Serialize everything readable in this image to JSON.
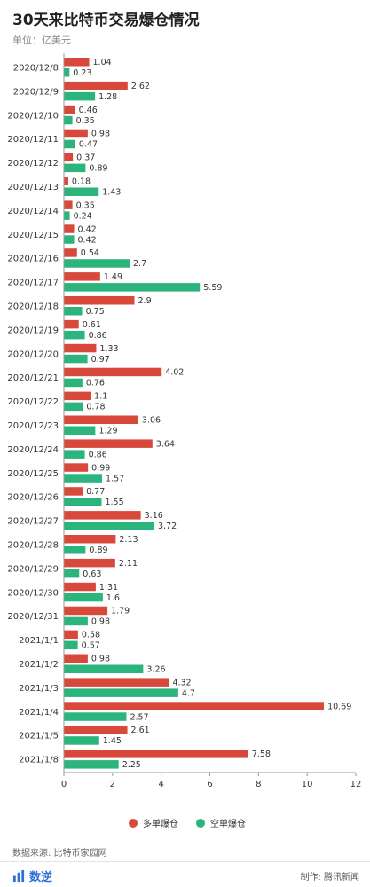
{
  "header": {
    "title": "30天来比特币交易爆仓情况",
    "subtitle": "单位：亿美元"
  },
  "footer": {
    "source": "数据来源: 比特币家园网",
    "brand": "数逆",
    "credit": "制作: 腾讯新闻"
  },
  "chart_data": {
    "type": "bar",
    "orientation": "horizontal",
    "categories": [
      "2020/12/8",
      "2020/12/9",
      "2020/12/10",
      "2020/12/11",
      "2020/12/12",
      "2020/12/13",
      "2020/12/14",
      "2020/12/15",
      "2020/12/16",
      "2020/12/17",
      "2020/12/18",
      "2020/12/19",
      "2020/12/20",
      "2020/12/21",
      "2020/12/22",
      "2020/12/23",
      "2020/12/24",
      "2020/12/25",
      "2020/12/26",
      "2020/12/27",
      "2020/12/28",
      "2020/12/29",
      "2020/12/30",
      "2020/12/31",
      "2021/1/1",
      "2021/1/2",
      "2021/1/3",
      "2021/1/4",
      "2021/1/5",
      "2021/1/8"
    ],
    "series": [
      {
        "name": "多单爆仓",
        "color": "#d9493b",
        "values": [
          1.04,
          2.62,
          0.46,
          0.98,
          0.37,
          0.18,
          0.35,
          0.42,
          0.54,
          1.49,
          2.9,
          0.61,
          1.33,
          4.02,
          1.1,
          3.06,
          3.64,
          0.99,
          0.77,
          3.16,
          2.13,
          2.11,
          1.31,
          1.79,
          0.58,
          0.98,
          4.32,
          10.69,
          2.61,
          7.58
        ]
      },
      {
        "name": "空单爆仓",
        "color": "#2bb57d",
        "values": [
          0.23,
          1.28,
          0.35,
          0.47,
          0.89,
          1.43,
          0.24,
          0.42,
          2.7,
          5.59,
          0.75,
          0.86,
          0.97,
          0.76,
          0.78,
          1.29,
          0.86,
          1.57,
          1.55,
          3.72,
          0.89,
          0.63,
          1.6,
          0.98,
          0.57,
          3.26,
          4.7,
          2.57,
          1.45,
          2.25
        ]
      }
    ],
    "xlim": [
      0,
      12
    ],
    "xticks": [
      0,
      2,
      4,
      6,
      8,
      10,
      12
    ],
    "grid": false,
    "legend": "bottom"
  }
}
